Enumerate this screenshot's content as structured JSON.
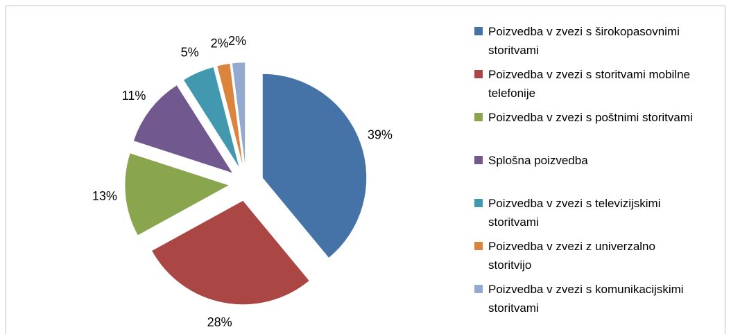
{
  "chart_data": {
    "type": "pie",
    "categories": [
      "Poizvedba v zvezi s širokopasovnimi storitvami",
      "Poizvedba v zvezi s storitvami mobilne telefonije",
      "Poizvedba v zvezi s poštnimi storitvami",
      "Splošna poizvedba",
      "Poizvedba v zvezi s televizijskimi storitvami",
      "Poizvedba v zvezi z univerzalno storitvijo",
      "Poizvedba v zvezi s komunikacijskimi storitvami"
    ],
    "values": [
      39,
      28,
      13,
      11,
      5,
      2,
      2
    ],
    "value_labels": [
      "39%",
      "28%",
      "13%",
      "11%",
      "5%",
      "2%",
      "2%"
    ],
    "colors": [
      "#4572a7",
      "#aa4643",
      "#89a54e",
      "#71588f",
      "#4198af",
      "#db843d",
      "#93a9cf"
    ],
    "legend": "right",
    "exploded": true
  }
}
